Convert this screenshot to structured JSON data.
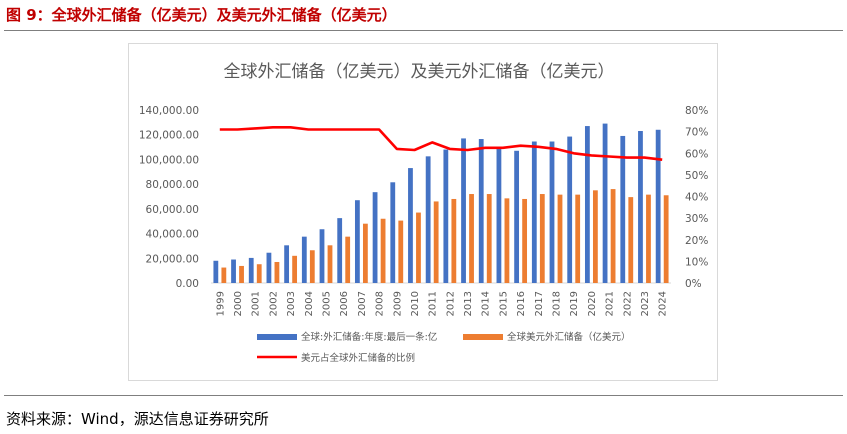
{
  "figure_title": "图 9：全球外汇储备（亿美元）及美元外汇储备（亿美元）",
  "source": "资料来源：Wind，源达信息证券研究所",
  "chart_data": {
    "type": "bar",
    "title": "全球外汇储备（亿美元）及美元外汇储备（亿美元）",
    "categories": [
      "1999",
      "2000",
      "2001",
      "2002",
      "2003",
      "2004",
      "2005",
      "2006",
      "2007",
      "2008",
      "2009",
      "2010",
      "2011",
      "2012",
      "2013",
      "2014",
      "2015",
      "2016",
      "2017",
      "2018",
      "2019",
      "2020",
      "2021",
      "2022",
      "2023",
      "2024"
    ],
    "series": [
      {
        "name": "全球:外汇储备:年度:最后一条:亿",
        "type": "bar",
        "axis": "left",
        "color": "#4472c4",
        "values": [
          18000,
          19000,
          20300,
          24500,
          30500,
          37500,
          43500,
          52500,
          67000,
          73500,
          81500,
          93000,
          102500,
          108000,
          117000,
          116500,
          108500,
          107000,
          114500,
          114500,
          118500,
          127000,
          129000,
          119000,
          123000,
          124000
        ]
      },
      {
        "name": "全球美元外汇储备（亿美元）",
        "type": "bar",
        "axis": "left",
        "color": "#ed7d31",
        "values": [
          12500,
          13800,
          15200,
          17000,
          22000,
          26500,
          30500,
          37500,
          48000,
          52000,
          50500,
          57000,
          66000,
          68000,
          72000,
          72000,
          68500,
          68000,
          72000,
          71500,
          71500,
          75000,
          76000,
          69500,
          71500,
          71000
        ]
      },
      {
        "name": "美元占全球外汇储备的比例",
        "type": "line",
        "axis": "right",
        "color": "#ff0000",
        "values": [
          71.0,
          71.0,
          71.5,
          72.0,
          72.0,
          71.0,
          71.0,
          71.0,
          71.0,
          71.0,
          62.0,
          61.5,
          65.0,
          62.0,
          61.5,
          62.5,
          62.5,
          63.5,
          63.0,
          62.0,
          60.0,
          59.0,
          58.5,
          58.0,
          58.0,
          57.0
        ]
      }
    ],
    "y_left": {
      "min": 0,
      "max": 140000,
      "step": 20000,
      "ticks": [
        "0.00",
        "20,000.00",
        "40,000.00",
        "60,000.00",
        "80,000.00",
        "100,000.00",
        "120,000.00",
        "140,000.00"
      ]
    },
    "y_right": {
      "min": 0,
      "max": 80,
      "step": 10,
      "ticks": [
        "0%",
        "10%",
        "20%",
        "30%",
        "40%",
        "50%",
        "60%",
        "70%",
        "80%"
      ]
    },
    "grid": false,
    "legend_placement": "bottom"
  }
}
